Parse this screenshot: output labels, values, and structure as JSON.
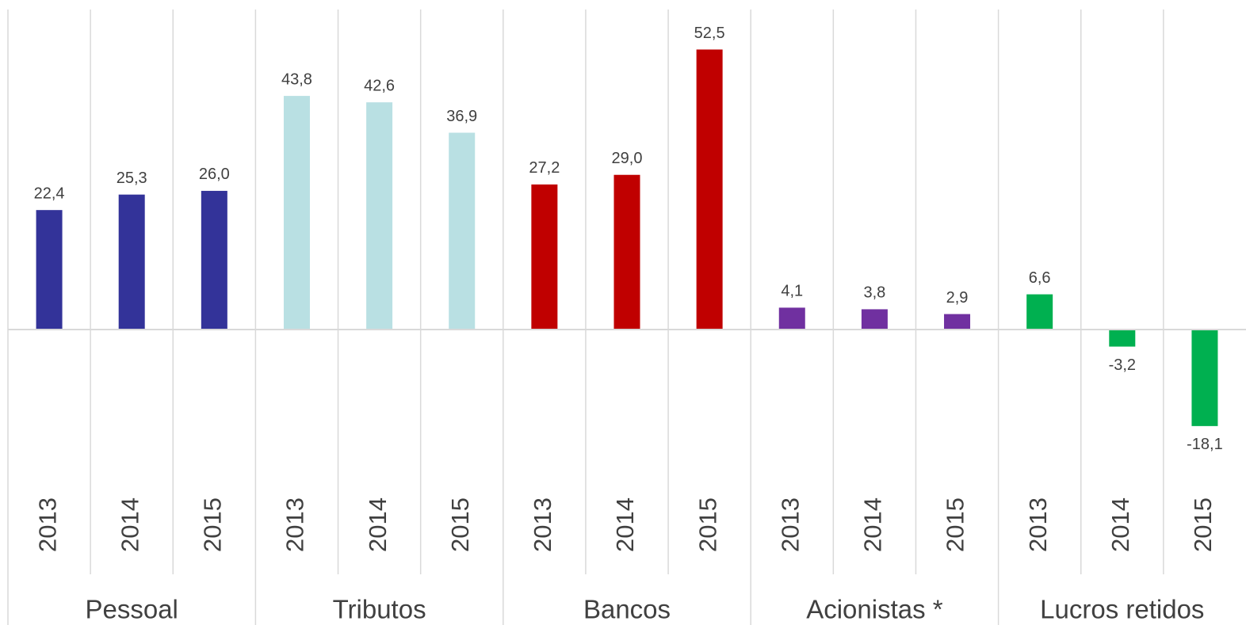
{
  "chart_data": {
    "type": "bar",
    "ylim": [
      -30,
      60
    ],
    "groups": [
      {
        "name": "Pessoal",
        "color": "#333399",
        "categories": [
          "2013",
          "2014",
          "2015"
        ],
        "values": [
          22.4,
          25.3,
          26.0
        ],
        "value_labels": [
          "22,4",
          "25,3",
          "26,0"
        ]
      },
      {
        "name": "Tributos",
        "color": "#b9e0e3",
        "categories": [
          "2013",
          "2014",
          "2015"
        ],
        "values": [
          43.8,
          42.6,
          36.9
        ],
        "value_labels": [
          "43,8",
          "42,6",
          "36,9"
        ]
      },
      {
        "name": "Bancos",
        "color": "#c00000",
        "categories": [
          "2013",
          "2014",
          "2015"
        ],
        "values": [
          27.2,
          29.0,
          52.5
        ],
        "value_labels": [
          "27,2",
          "29,0",
          "52,5"
        ]
      },
      {
        "name": "Acionistas *",
        "color": "#7030a0",
        "categories": [
          "2013",
          "2014",
          "2015"
        ],
        "values": [
          4.1,
          3.8,
          2.9
        ],
        "value_labels": [
          "4,1",
          "3,8",
          "2,9"
        ]
      },
      {
        "name": "Lucros retidos",
        "color": "#00b050",
        "categories": [
          "2013",
          "2014",
          "2015"
        ],
        "values": [
          6.6,
          -3.2,
          -18.1
        ],
        "value_labels": [
          "6,6",
          "-3,2",
          "-18,1"
        ]
      }
    ]
  }
}
